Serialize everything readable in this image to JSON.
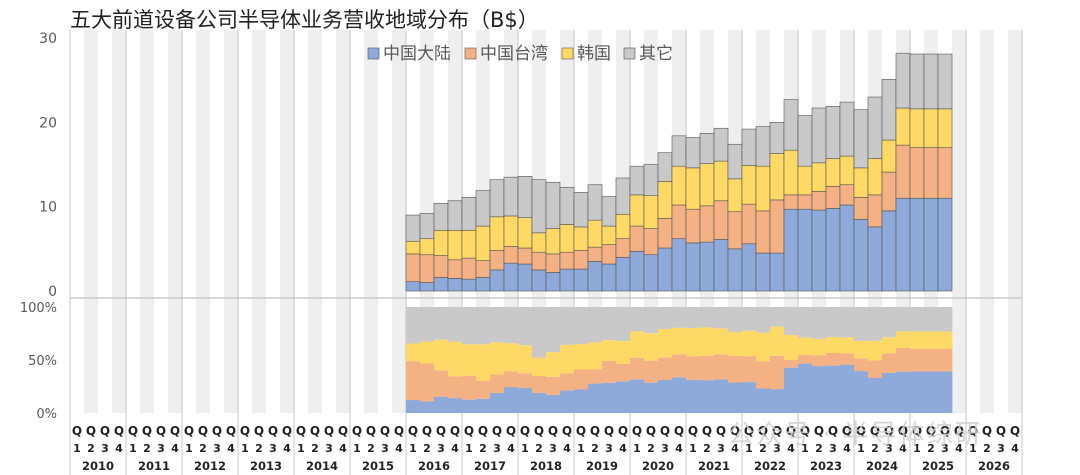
{
  "title": "五大前道设备公司半导体业务营收地域分布（B$）",
  "watermark": "公众号 · 半导体综研",
  "chart_data": [
    {
      "type": "bar",
      "stacked": true,
      "legend_position": "top-center",
      "grid": false,
      "ylim": [
        0,
        30
      ],
      "yticks": [
        0,
        10,
        20,
        30
      ],
      "ytick_labels": [
        "0",
        "10",
        "20",
        "30"
      ],
      "years": [
        "2010",
        "2011",
        "2012",
        "2013",
        "2014",
        "2015",
        "2016",
        "2017",
        "2018",
        "2019",
        "2020",
        "2021",
        "2022",
        "2023",
        "2024",
        "2025",
        "2026"
      ],
      "quarter_labels": [
        "Q1",
        "Q2",
        "Q3",
        "Q4"
      ],
      "categories": [
        "2016Q1",
        "2016Q2",
        "2016Q3",
        "2016Q4",
        "2017Q1",
        "2017Q2",
        "2017Q3",
        "2017Q4",
        "2018Q1",
        "2018Q2",
        "2018Q3",
        "2018Q4",
        "2019Q1",
        "2019Q2",
        "2019Q3",
        "2019Q4",
        "2020Q1",
        "2020Q2",
        "2020Q3",
        "2020Q4",
        "2021Q1",
        "2021Q2",
        "2021Q3",
        "2021Q4",
        "2022Q1",
        "2022Q2",
        "2022Q3",
        "2022Q4",
        "2023Q1",
        "2023Q2",
        "2023Q3",
        "2023Q4",
        "2024Q1",
        "2024Q2",
        "2024Q3",
        "2024Q4",
        "2025Q1",
        "2025Q2",
        "2025Q3"
      ],
      "series": [
        {
          "name": "中国大陆",
          "color": "#8eaadb",
          "values": [
            1.1,
            1.0,
            1.6,
            1.5,
            1.4,
            1.6,
            2.5,
            3.3,
            3.2,
            2.5,
            2.2,
            2.6,
            2.6,
            3.5,
            3.2,
            4.0,
            4.7,
            4.3,
            5.1,
            6.2,
            5.7,
            5.8,
            6.1,
            5.0,
            5.6,
            4.5,
            4.5,
            9.7,
            9.7,
            9.6,
            9.8,
            10.2,
            8.5,
            7.6,
            9.5,
            11.0,
            11.0,
            11.0,
            11.0
          ]
        },
        {
          "name": "中国台湾",
          "color": "#f4b183",
          "values": [
            3.3,
            3.3,
            2.6,
            2.2,
            2.5,
            2.0,
            2.3,
            2.0,
            1.9,
            2.1,
            2.2,
            2.0,
            2.2,
            1.7,
            2.3,
            2.2,
            3.0,
            3.1,
            3.5,
            4.0,
            4.0,
            4.3,
            4.6,
            4.4,
            4.7,
            5.0,
            6.3,
            1.7,
            1.7,
            2.2,
            2.6,
            2.4,
            2.6,
            3.8,
            4.6,
            6.3,
            6.0,
            6.0,
            6.0
          ]
        },
        {
          "name": "韩国",
          "color": "#ffd966",
          "values": [
            1.5,
            1.9,
            3.0,
            3.5,
            3.3,
            4.1,
            4.0,
            3.6,
            3.6,
            2.3,
            3.0,
            3.3,
            2.8,
            3.2,
            2.2,
            2.9,
            3.7,
            3.9,
            4.4,
            4.6,
            4.9,
            5.0,
            4.7,
            3.9,
            4.6,
            5.3,
            5.5,
            5.3,
            3.4,
            3.4,
            3.3,
            3.4,
            3.5,
            4.3,
            3.8,
            4.4,
            4.6,
            4.6,
            4.6
          ]
        },
        {
          "name": "其它",
          "color": "#c9c9c9",
          "values": [
            3.1,
            3.0,
            3.2,
            3.5,
            3.9,
            4.2,
            4.4,
            4.6,
            4.9,
            6.3,
            5.5,
            4.4,
            4.1,
            4.2,
            3.5,
            4.3,
            3.4,
            3.7,
            3.4,
            3.6,
            3.6,
            3.6,
            3.9,
            4.1,
            4.3,
            4.7,
            3.7,
            6.0,
            6.0,
            6.5,
            6.2,
            6.4,
            6.9,
            7.3,
            7.2,
            6.5,
            6.5,
            6.5,
            6.5
          ]
        }
      ]
    },
    {
      "type": "bar",
      "stacked": true,
      "percent": true,
      "grid": false,
      "ylim": [
        0,
        100
      ],
      "yticks": [
        0,
        50,
        100
      ],
      "ytick_labels": [
        "0%",
        "50%",
        "100%"
      ],
      "categories_from": "first-chart"
    }
  ]
}
